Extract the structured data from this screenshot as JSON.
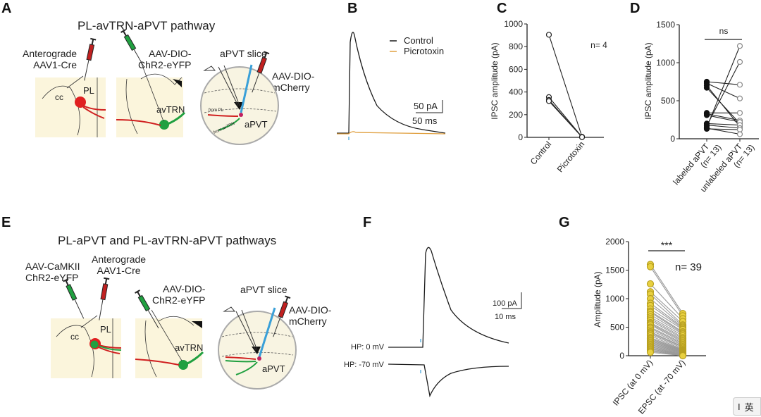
{
  "panels": {
    "A": {
      "letter": "A",
      "title": "PL-avTRN-aPVT pathway",
      "labels": {
        "inj1": "Anterograde\nAAV1-Cre",
        "inj2": "AAV-DIO-\nChR2-eYFP",
        "slice": "aPVT slice",
        "inj3": "AAV-DIO-\nmCherry",
        "cc": "cc",
        "pl": "PL",
        "avtrn": "avTRN",
        "apvt": "aPVT",
        "from_pl": "from PL",
        "from_avtrn": "from avTRN"
      }
    },
    "B": {
      "letter": "B",
      "legend": [
        "Control",
        "Picrotoxin"
      ],
      "scale_y": "50 pA",
      "scale_x": "50 ms"
    },
    "C": {
      "letter": "C"
    },
    "D": {
      "letter": "D"
    },
    "E": {
      "letter": "E",
      "title": "PL-aPVT and PL-avTRN-aPVT pathways",
      "labels": {
        "inj0": "AAV-CaMKII\nChR2-eYFP",
        "inj1": "Anterograde\nAAV1-Cre",
        "inj2": "AAV-DIO-\nChR2-eYFP",
        "slice": "aPVT slice",
        "inj3": "AAV-DIO-\nmCherry",
        "cc": "cc",
        "pl": "PL",
        "avtrn": "avTRN",
        "apvt": "aPVT",
        "from_pl": "from PL",
        "from_avtrn": "from avTRN"
      }
    },
    "F": {
      "letter": "F",
      "hp0": "HP: 0 mV",
      "hp70": "HP: -70 mV",
      "scale_y": "100 pA",
      "scale_x": "10 ms"
    },
    "G": {
      "letter": "G"
    }
  },
  "colors": {
    "control": "#1a1a1a",
    "picrotoxin": "#e0a040",
    "red": "#e02020",
    "green": "#20a040",
    "blue": "#3aa0d8",
    "yellow_dot": "#e8d040",
    "bg_tissue": "#fbf5dc"
  },
  "chart_data": [
    {
      "panel": "C",
      "type": "line",
      "ylabel": "IPSC amplitude (pA)",
      "categories": [
        "Control",
        "Picrotoxin"
      ],
      "ylim": [
        0,
        1000
      ],
      "yticks": [
        0,
        200,
        400,
        600,
        800,
        1000
      ],
      "annotation": "n= 4",
      "pairs": [
        [
          905,
          5
        ],
        [
          355,
          3
        ],
        [
          330,
          2
        ],
        [
          320,
          2
        ]
      ]
    },
    {
      "panel": "D",
      "type": "line",
      "ylabel": "IPSC amplitude (pA)",
      "categories": [
        "labeled aPVT\n(n= 13)",
        "unlabeled aPVT\n(n= 13)"
      ],
      "ylim": [
        0,
        1500
      ],
      "yticks": [
        0,
        500,
        1000,
        1500
      ],
      "annotation": "ns",
      "pairs": [
        [
          750,
          710
        ],
        [
          730,
          530
        ],
        [
          700,
          160
        ],
        [
          670,
          200
        ],
        [
          340,
          340
        ],
        [
          330,
          240
        ],
        [
          310,
          220
        ],
        [
          200,
          180
        ],
        [
          180,
          140
        ],
        [
          150,
          1220
        ],
        [
          170,
          1010
        ],
        [
          130,
          120
        ],
        [
          140,
          60
        ]
      ]
    },
    {
      "panel": "G",
      "type": "line",
      "ylabel": "Amplitude (pA)",
      "categories": [
        "IPSC (at 0 mV)",
        "EPSC (at -70 mV)"
      ],
      "ylim": [
        0,
        2000
      ],
      "yticks": [
        0,
        500,
        1000,
        1500,
        2000
      ],
      "annotation": "n= 39",
      "significance": "***",
      "pairs": [
        [
          1600,
          740
        ],
        [
          1560,
          700
        ],
        [
          1260,
          650
        ],
        [
          1120,
          600
        ],
        [
          1080,
          540
        ],
        [
          1000,
          520
        ],
        [
          920,
          500
        ],
        [
          880,
          480
        ],
        [
          820,
          460
        ],
        [
          780,
          420
        ],
        [
          760,
          400
        ],
        [
          720,
          380
        ],
        [
          680,
          350
        ],
        [
          650,
          320
        ],
        [
          620,
          300
        ],
        [
          580,
          280
        ],
        [
          560,
          260
        ],
        [
          540,
          240
        ],
        [
          500,
          220
        ],
        [
          480,
          200
        ],
        [
          450,
          180
        ],
        [
          420,
          160
        ],
        [
          400,
          150
        ],
        [
          380,
          130
        ],
        [
          350,
          110
        ],
        [
          320,
          100
        ],
        [
          300,
          90
        ],
        [
          280,
          80
        ],
        [
          260,
          70
        ],
        [
          240,
          60
        ],
        [
          220,
          50
        ],
        [
          200,
          40
        ],
        [
          180,
          30
        ],
        [
          160,
          20
        ],
        [
          140,
          15
        ],
        [
          120,
          10
        ],
        [
          100,
          5
        ],
        [
          80,
          3
        ],
        [
          60,
          0
        ]
      ]
    }
  ],
  "ime": {
    "cursor": "I",
    "lang": "英"
  }
}
